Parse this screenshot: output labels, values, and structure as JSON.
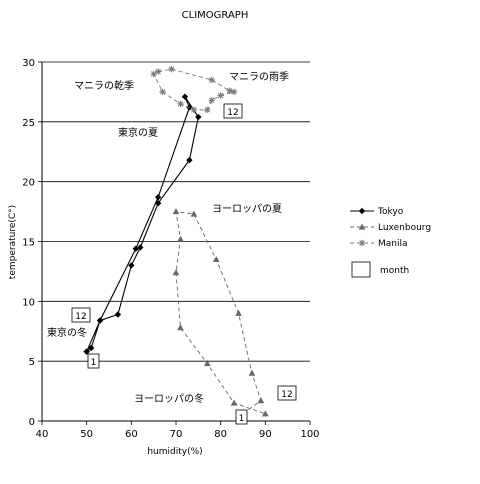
{
  "chart_data": {
    "type": "line",
    "title": "CLIMOGRAPH",
    "xlabel": "humidity(%)",
    "ylabel": "temperature(C°)",
    "xlim": [
      40,
      100
    ],
    "ylim": [
      0,
      30
    ],
    "x_ticks": [
      "40",
      "50",
      "60",
      "70",
      "80",
      "90",
      "100"
    ],
    "y_ticks": [
      "0",
      "5",
      "10",
      "15",
      "20",
      "25",
      "30"
    ],
    "grid": "horizontal",
    "legend_position": "right",
    "series": [
      {
        "name": "Tokyo",
        "marker": "diamond",
        "color": "#000000",
        "dash": "solid",
        "points": [
          [
            50,
            5.8
          ],
          [
            51,
            6.1
          ],
          [
            53,
            8.4
          ],
          [
            57,
            8.9
          ],
          [
            60,
            13.0
          ],
          [
            62,
            14.5
          ],
          [
            66,
            18.2
          ],
          [
            73,
            21.8
          ],
          [
            75,
            25.4
          ],
          [
            72,
            27.1
          ],
          [
            73,
            26.2
          ],
          [
            66,
            18.7
          ],
          [
            61,
            14.4
          ],
          [
            53,
            8.4
          ],
          [
            50,
            5.8
          ]
        ]
      },
      {
        "name": "Luxenbourg",
        "marker": "triangle",
        "color": "#666666",
        "dash": "dashed",
        "points": [
          [
            85,
            0.6
          ],
          [
            89,
            1.7
          ],
          [
            87,
            4.0
          ],
          [
            84,
            9.0
          ],
          [
            79,
            13.5
          ],
          [
            74,
            17.3
          ],
          [
            70,
            17.5
          ],
          [
            71,
            15.2
          ],
          [
            70,
            12.4
          ],
          [
            71,
            7.8
          ],
          [
            77,
            4.8
          ],
          [
            83,
            1.5
          ],
          [
            90,
            0.6
          ]
        ]
      },
      {
        "name": "Manila",
        "marker": "asterisk",
        "color": "#777777",
        "dash": "dashed",
        "points": [
          [
            66,
            29.2
          ],
          [
            69,
            29.4
          ],
          [
            78,
            28.5
          ],
          [
            82,
            27.6
          ],
          [
            83,
            27.5
          ],
          [
            80,
            27.2
          ],
          [
            78,
            26.8
          ],
          [
            77,
            26.0
          ],
          [
            74,
            26.0
          ],
          [
            71,
            26.5
          ],
          [
            67,
            27.5
          ],
          [
            65,
            29.0
          ]
        ]
      }
    ],
    "legend": {
      "month_label": "month"
    },
    "annotations": {
      "manila_dry": "マニラの乾季",
      "manila_wet": "マニラの雨季",
      "tokyo_summer": "東京の夏",
      "tokyo_winter": "東京の冬",
      "europe_summer": "ヨーロッパの夏",
      "europe_winter": "ヨーロッパの冬",
      "box_12_manila": "12",
      "box_12_tokyo": "12",
      "box_1_tokyo": "1",
      "box_12_lux": "12",
      "box_1_lux": "1"
    }
  }
}
